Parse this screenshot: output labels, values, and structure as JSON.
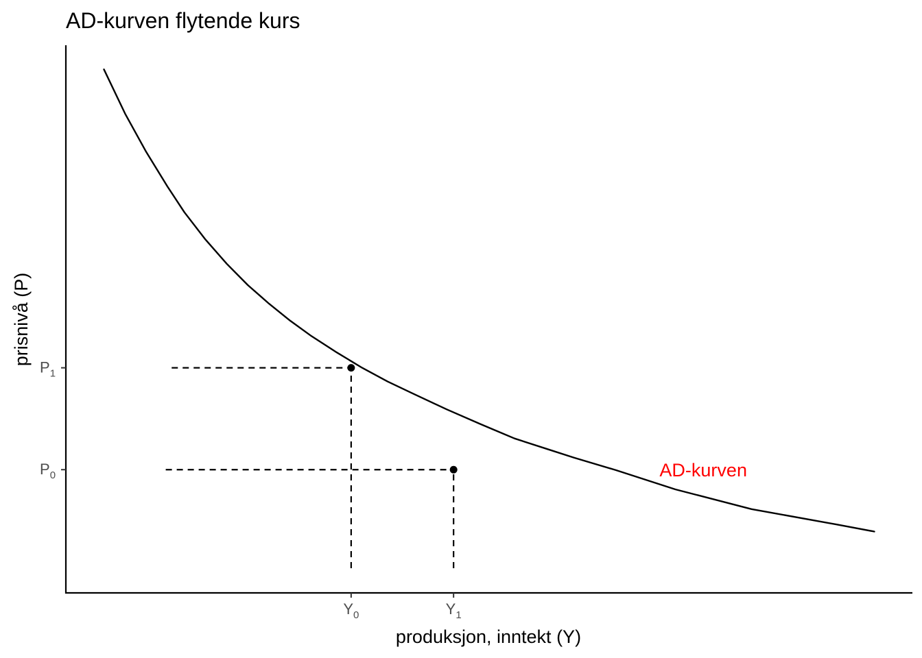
{
  "chart_data": {
    "type": "line",
    "title": "AD-kurven flytende kurs",
    "xlabel": "produksjon, inntekt (Y)",
    "ylabel": "prisnivå (P)",
    "xlim": [
      0,
      100
    ],
    "ylim": [
      0,
      100
    ],
    "grid": false,
    "series": [
      {
        "name": "AD-kurven",
        "color": "#000000",
        "x": [
          4.5,
          7,
          9.5,
          12,
          14,
          16.5,
          19,
          21.5,
          24,
          26.5,
          29,
          32,
          35,
          38,
          41,
          45,
          49,
          53,
          57,
          60,
          65,
          72,
          81,
          91,
          95.5
        ],
        "y": [
          95.6,
          87.5,
          80.5,
          74.2,
          69.5,
          64.5,
          60.1,
          56.2,
          52.8,
          49.7,
          46.9,
          43.9,
          41.1,
          38.6,
          36.4,
          33.5,
          30.8,
          28.2,
          26.2,
          24.7,
          22.4,
          18.9,
          15.3,
          12.5,
          11.2
        ]
      }
    ],
    "points": [
      {
        "x": 33.7,
        "y": 41.1,
        "label": "P1 at Y0"
      },
      {
        "x": 45.8,
        "y": 22.5,
        "label": "P0 at Y1"
      }
    ],
    "guides": {
      "horizontal": [
        {
          "y": 41.1,
          "x_from": 12.5,
          "x_to": 33.7
        },
        {
          "y": 22.5,
          "x_from": 11.8,
          "x_to": 45.8
        }
      ],
      "vertical": [
        {
          "x": 33.7,
          "y_from": 4.5,
          "y_to": 41.1
        },
        {
          "x": 45.8,
          "y_from": 4.5,
          "y_to": 22.5
        }
      ]
    },
    "x_ticks": [
      {
        "value": 33.7,
        "main": "Y",
        "sub": "0"
      },
      {
        "value": 45.8,
        "main": "Y",
        "sub": "1"
      }
    ],
    "y_ticks": [
      {
        "value": 41.1,
        "main": "P",
        "sub": "1"
      },
      {
        "value": 22.5,
        "main": "P",
        "sub": "0"
      }
    ],
    "annotations": [
      {
        "text": "AD-kurven",
        "x": 75.3,
        "y": 22.4,
        "color": "#ff0000"
      }
    ]
  }
}
